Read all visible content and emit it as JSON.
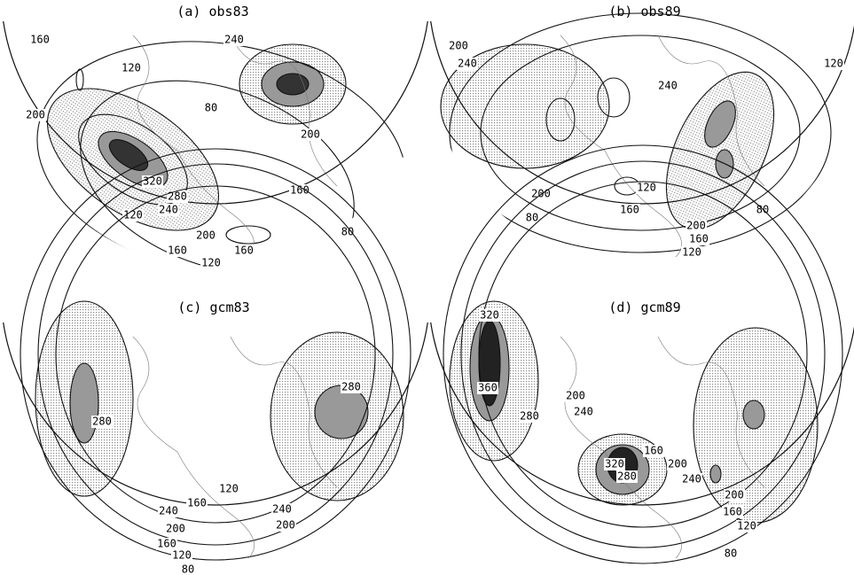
{
  "panels": [
    {
      "title": "(a) obs83",
      "contour_labels": [
        "160",
        "120",
        "200",
        "320",
        "280",
        "240",
        "200",
        "160",
        "120",
        "120",
        "160",
        "240",
        "80",
        "200",
        "160",
        "80"
      ]
    },
    {
      "title": "(b) obs89",
      "contour_labels": [
        "200",
        "240",
        "120",
        "240",
        "200",
        "160",
        "120",
        "80",
        "200",
        "160",
        "120",
        "80"
      ]
    },
    {
      "title": "(c) gcm83",
      "contour_labels": [
        "280",
        "280",
        "120",
        "160",
        "240",
        "240",
        "200",
        "200",
        "160",
        "120",
        "80"
      ]
    },
    {
      "title": "(d) gcm89",
      "contour_labels": [
        "320",
        "360",
        "200",
        "240",
        "280",
        "320",
        "280",
        "160",
        "200",
        "240",
        "200",
        "160",
        "120",
        "80"
      ]
    }
  ]
}
